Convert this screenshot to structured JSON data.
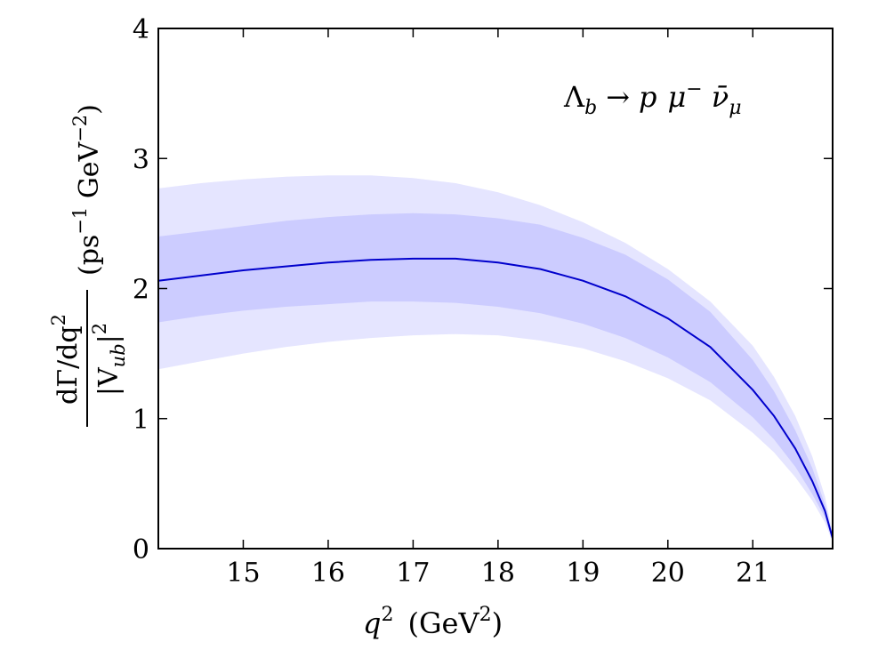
{
  "chart_data": {
    "type": "area",
    "title": "",
    "annotation": {
      "lambda": "Λ",
      "lambda_sub": "b",
      "arrow": "→",
      "p": "p",
      "mu": "μ",
      "mu_sup": "−",
      "nu": "ν̄",
      "nu_sub": "μ"
    },
    "xlabel": {
      "q": "q",
      "q_sup": "2",
      "unit_open": "(GeV",
      "unit_sup": "2",
      "unit_close": ")"
    },
    "ylabel": {
      "numerator": "dΓ/dq",
      "numerator_sup": "2",
      "denominator_open": "|V",
      "denominator_sub": "ub",
      "denominator_close": "|",
      "denominator_sup": "2",
      "unit_open": "(ps",
      "unit_sup1": "−1",
      "unit_mid": " GeV",
      "unit_sup2": "−2",
      "unit_close": ")"
    },
    "xlim": [
      14.0,
      21.94
    ],
    "ylim": [
      0,
      4
    ],
    "x_ticks": [
      "15",
      "16",
      "17",
      "18",
      "19",
      "20",
      "21"
    ],
    "y_ticks": [
      "0",
      "1",
      "2",
      "3",
      "4"
    ],
    "grid": false,
    "colors": {
      "central": "#0000cc",
      "inner_band": "#ccccff",
      "outer_band": "#e5e5ff"
    },
    "x": [
      14.0,
      14.5,
      15.0,
      15.5,
      16.0,
      16.5,
      17.0,
      17.5,
      18.0,
      18.5,
      19.0,
      19.5,
      20.0,
      20.5,
      21.0,
      21.25,
      21.5,
      21.7,
      21.85,
      21.94
    ],
    "series": [
      {
        "name": "central",
        "values": [
          2.06,
          2.1,
          2.14,
          2.17,
          2.2,
          2.22,
          2.23,
          2.23,
          2.2,
          2.15,
          2.06,
          1.94,
          1.77,
          1.55,
          1.22,
          1.02,
          0.77,
          0.52,
          0.29,
          0.08
        ]
      },
      {
        "name": "inner_band",
        "lower": [
          1.74,
          1.79,
          1.83,
          1.86,
          1.88,
          1.9,
          1.9,
          1.89,
          1.86,
          1.81,
          1.73,
          1.62,
          1.47,
          1.28,
          1.01,
          0.84,
          0.63,
          0.42,
          0.24,
          0.06
        ],
        "upper": [
          2.4,
          2.44,
          2.48,
          2.52,
          2.55,
          2.57,
          2.58,
          2.57,
          2.54,
          2.49,
          2.39,
          2.26,
          2.07,
          1.82,
          1.45,
          1.21,
          0.91,
          0.62,
          0.34,
          0.1
        ]
      },
      {
        "name": "outer_band",
        "lower": [
          1.38,
          1.44,
          1.5,
          1.55,
          1.59,
          1.62,
          1.64,
          1.65,
          1.64,
          1.6,
          1.54,
          1.44,
          1.31,
          1.14,
          0.89,
          0.74,
          0.55,
          0.37,
          0.2,
          0.05
        ],
        "upper": [
          2.77,
          2.81,
          2.84,
          2.86,
          2.87,
          2.87,
          2.85,
          2.81,
          2.74,
          2.64,
          2.51,
          2.35,
          2.15,
          1.9,
          1.56,
          1.32,
          1.02,
          0.71,
          0.4,
          0.12
        ]
      }
    ]
  }
}
